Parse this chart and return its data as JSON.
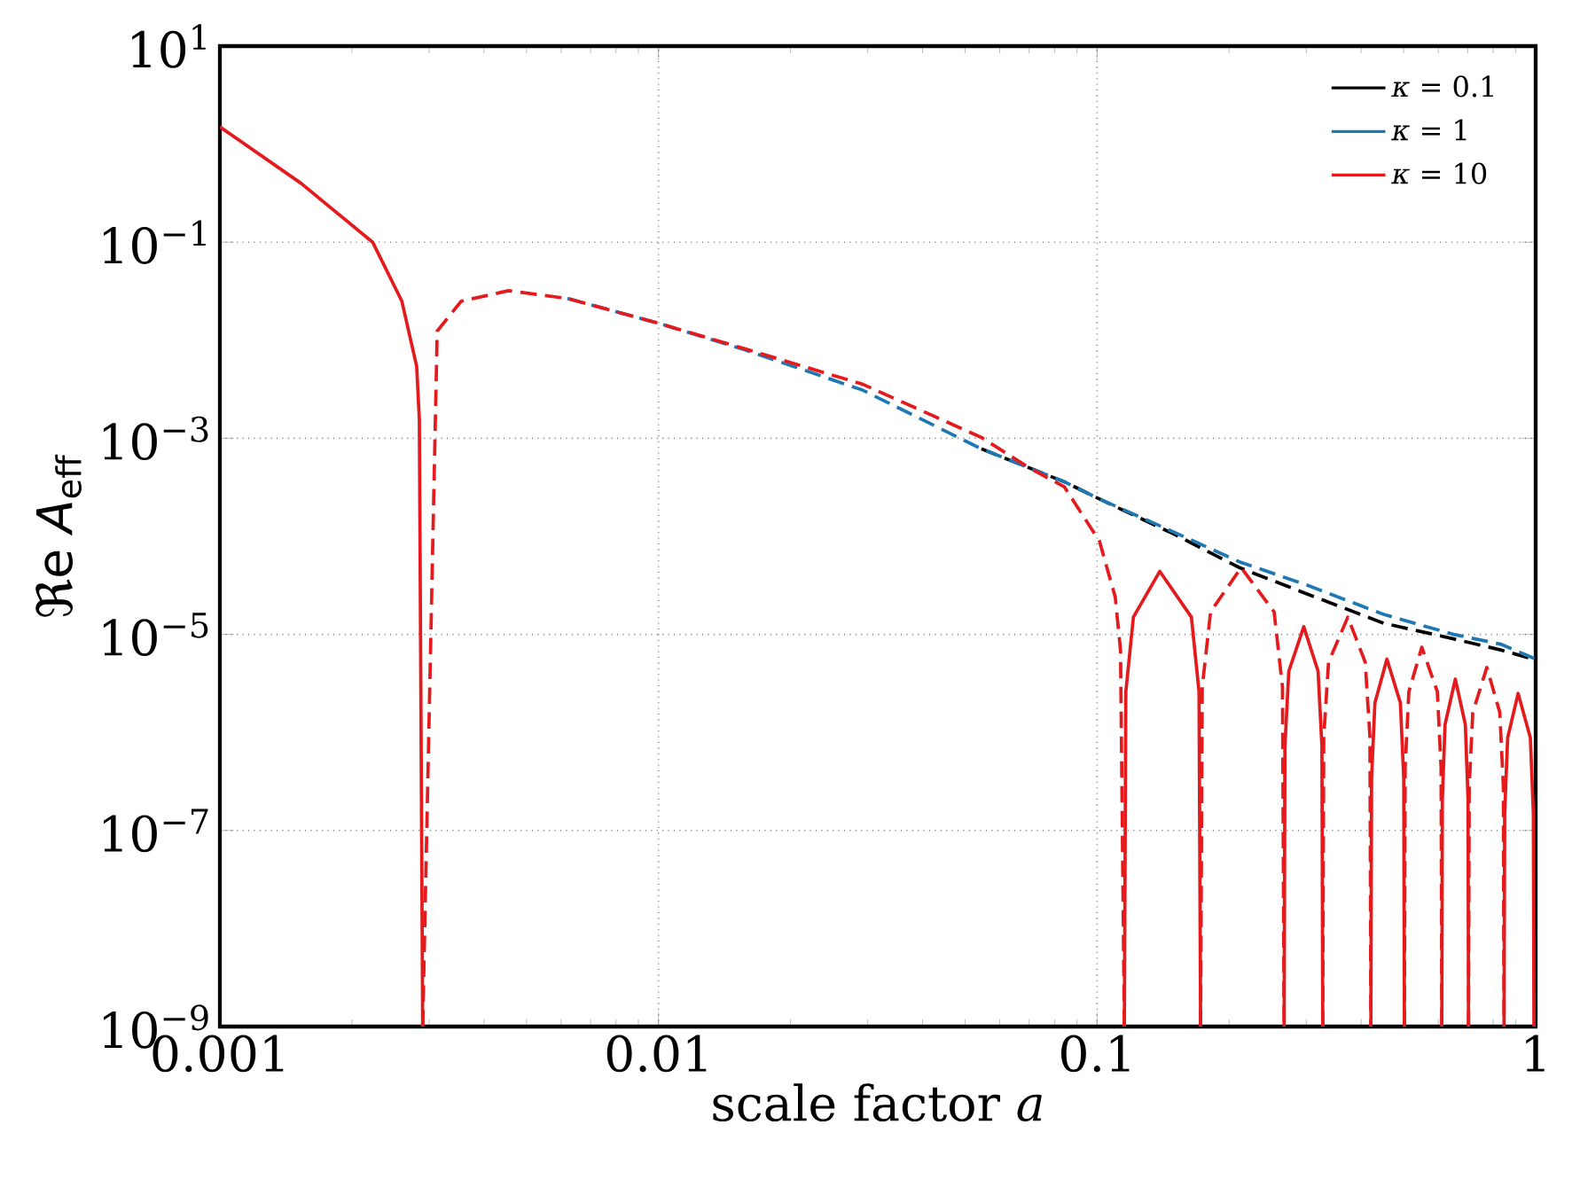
{
  "chart_data": {
    "type": "line",
    "xlabel": "scale factor *a*",
    "ylabel": "ℜe *A*$_{eff}$",
    "log": "xy",
    "grid": true,
    "legend": "top right",
    "xlim": [
      0.001,
      1
    ],
    "ylim": [
      1e-09,
      10
    ],
    "xticks": [
      0.001,
      0.01,
      0.1,
      1
    ],
    "yticks": [
      {
        "value": 10,
        "label": "10$^{1}$"
      },
      {
        "value": 0.1,
        "label": "10$^{−1}$"
      },
      {
        "value": 0.001,
        "label": "10$^{−3}$"
      },
      {
        "value": 1e-05,
        "label": "10$^{−5}$"
      },
      {
        "value": 1e-07,
        "label": "10$^{−7}$"
      },
      {
        "value": 1e-09,
        "label": "10$^{−9}$"
      }
    ],
    "series": [
      {
        "name": "*κ* = 0.1",
        "color": "#000000",
        "line_style": "dashed",
        "x": [
          0.0545,
          0.0842,
          0.1013,
          0.15,
          0.2111,
          0.3,
          0.45,
          0.65,
          0.836,
          1
        ],
        "values": [
          0.00078,
          0.00036,
          0.00024,
          0.000105,
          4.8e-05,
          2.6e-05,
          1.3e-05,
          9e-06,
          6.9e-06,
          5.5e-06
        ]
      },
      {
        "name": "*κ* = 1",
        "color": "#1f77b4",
        "line_style": "dashed",
        "x": [
          0.0062,
          0.01,
          0.01572,
          0.0292,
          0.0545,
          0.0842,
          0.1013,
          0.15,
          0.2111,
          0.3,
          0.45,
          0.65,
          0.836,
          1
        ],
        "values": [
          0.0267,
          0.0149,
          0.008,
          0.0031,
          0.00078,
          0.00036,
          0.00024,
          0.00011,
          5.5e-05,
          3.2e-05,
          1.6e-05,
          1e-05,
          7.9e-06,
          5.6e-06
        ]
      },
      {
        "name": "*κ* = 10",
        "color": "#e41a1c",
        "line_style": "solid",
        "x": [
          0.001,
          0.00153,
          0.00223,
          0.0026,
          0.00281,
          0.00285,
          0.0029,
          0.1,
          0.1154,
          0.1163,
          0.121,
          0.139,
          0.1641,
          0.1708,
          0.1722,
          0.2,
          0.267,
          0.2681,
          0.2736,
          0.296,
          0.3191,
          0.3256,
          0.327,
          0.4,
          0.421,
          0.4225,
          0.43,
          0.458,
          0.4915,
          0.5003,
          0.502,
          0.55,
          0.611,
          0.6127,
          0.6214,
          0.656,
          0.6913,
          0.7011,
          0.703,
          0.8,
          0.847,
          0.8498,
          0.8632,
          0.912,
          0.9725,
          0.9879,
          0.991
        ],
        "values": [
          1.5,
          0.4,
          0.1,
          0.025,
          0.0054,
          0.00155,
          1e-09,
          null,
          1e-09,
          2.6e-06,
          1.5e-05,
          4.4e-05,
          1.5e-05,
          2.6e-06,
          1e-09,
          null,
          1e-09,
          7.2e-07,
          4.2e-06,
          1.2e-05,
          4.2e-06,
          7.2e-07,
          1e-09,
          null,
          1e-09,
          3.4e-07,
          2e-06,
          5.6e-06,
          2e-06,
          3.4e-07,
          1e-09,
          null,
          1e-09,
          2.1e-07,
          1.2e-06,
          3.5e-06,
          1.2e-06,
          2.1e-07,
          1e-09,
          null,
          1e-09,
          1.5e-07,
          8.8e-07,
          2.5e-06,
          8.8e-07,
          1.5e-07,
          1e-09
        ]
      },
      {
        "color": "#e41a1c",
        "line_style": "dashed",
        "x": [
          0.0029,
          0.00313,
          0.00355,
          0.00455,
          0.0062,
          0.01,
          0.01572,
          0.0292,
          0.0545,
          0.07,
          0.0842,
          0.1013,
          0.11,
          0.1131,
          0.1154,
          0.14,
          0.1722,
          0.1737,
          0.1815,
          0.213,
          0.2533,
          0.2647,
          0.267,
          0.3,
          0.327,
          0.3287,
          0.3371,
          0.373,
          0.4087,
          0.4189,
          0.421,
          0.46,
          0.502,
          0.504,
          0.5139,
          0.55,
          0.5968,
          0.6086,
          0.611,
          0.65,
          0.703,
          0.7056,
          0.7189,
          0.774,
          0.8283,
          0.844,
          0.847
        ],
        "values": [
          1e-09,
          0.0124,
          0.025,
          0.032,
          0.0267,
          0.0149,
          0.0082,
          0.00356,
          0.00102,
          0.0005,
          0.00032,
          8.9e-05,
          2.4e-05,
          6.9e-06,
          1e-09,
          null,
          1e-09,
          2.9e-06,
          1.7e-05,
          4.8e-05,
          1.7e-05,
          2.9e-06,
          1e-09,
          null,
          1e-09,
          9e-07,
          5.2e-06,
          1.5e-05,
          5.2e-06,
          9e-07,
          1e-09,
          null,
          1e-09,
          4.4e-07,
          2.6e-06,
          7.4e-06,
          2.6e-06,
          4.4e-07,
          1e-09,
          null,
          1e-09,
          2.8e-07,
          1.6e-06,
          4.6e-06,
          1.6e-06,
          2.8e-07,
          1e-09
        ]
      }
    ]
  }
}
